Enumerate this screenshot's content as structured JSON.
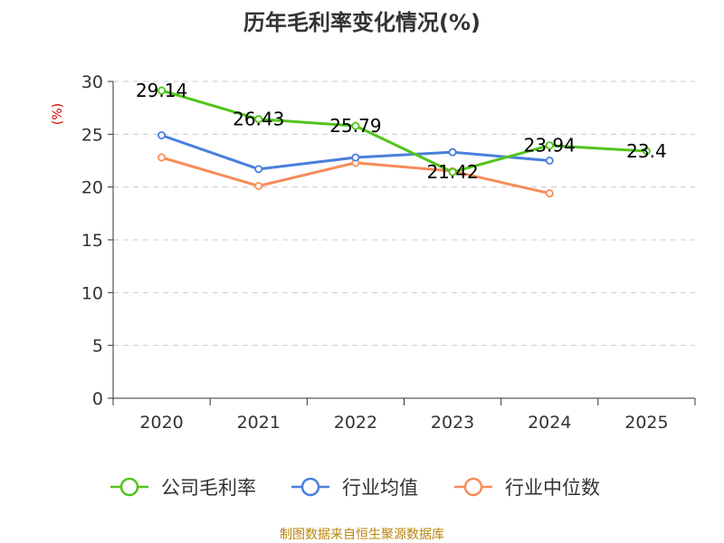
{
  "chart_data": {
    "type": "line",
    "title": "历年毛利率变化情况(%)",
    "ylabel": "(%)",
    "xlabel": "",
    "categories": [
      "2020",
      "2021",
      "2022",
      "2023",
      "2024",
      "2025"
    ],
    "ylim": [
      0,
      30
    ],
    "yticks": [
      0,
      5,
      10,
      15,
      20,
      25,
      30
    ],
    "grid": true,
    "legend_position": "bottom",
    "series": [
      {
        "name": "公司毛利率",
        "color": "#52c41a",
        "values": [
          29.14,
          26.43,
          25.79,
          21.42,
          23.94,
          23.4
        ],
        "data_labels": [
          "29.14",
          "26.43",
          "25.79",
          "21.42",
          "23.94",
          "23.4"
        ]
      },
      {
        "name": "行业均值",
        "color": "#4a7fdc",
        "values": [
          24.9,
          21.7,
          22.8,
          23.3,
          22.5,
          null
        ]
      },
      {
        "name": "行业中位数",
        "color": "#f78c5a",
        "values": [
          22.8,
          20.1,
          22.3,
          21.5,
          19.4,
          null
        ]
      }
    ]
  },
  "footer": {
    "source": "制图数据来自恒生聚源数据库"
  }
}
